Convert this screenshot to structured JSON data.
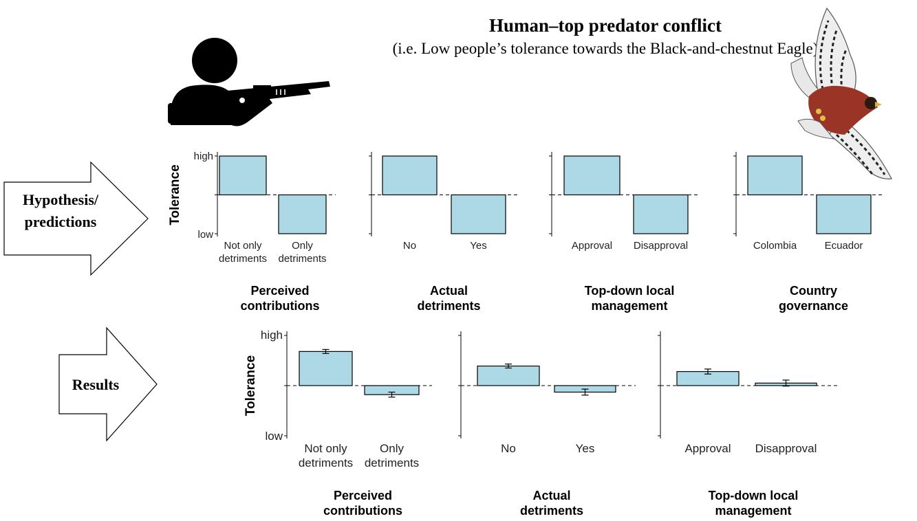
{
  "title": "Human–top predator conflict",
  "subtitle": "(i.e. Low people’s tolerance towards the Black-and-chestnut Eagle)",
  "colors": {
    "bar_fill": "#add8e6",
    "bar_stroke": "#000000",
    "arrow_fill": "#ffffff"
  },
  "icons": [
    "hunter-with-rifle-icon",
    "black-and-chestnut-eagle-icon"
  ],
  "rows": [
    {
      "label": "Hypothesis/\npredictions"
    },
    {
      "label": "Results"
    }
  ],
  "chart_data": [
    {
      "type": "bar",
      "row": "hypothesis",
      "ylabel": "Tolerance",
      "yticks": [
        "high",
        "low"
      ],
      "categories": [
        "Not only\ndetriments",
        "Only\ndetriments"
      ],
      "values": [
        1,
        -1
      ],
      "xlabel": "Perceived\ncontributions",
      "ylim": [
        -1,
        1
      ],
      "reference_line": 0
    },
    {
      "type": "bar",
      "row": "hypothesis",
      "categories": [
        "No",
        "Yes"
      ],
      "values": [
        1,
        -1
      ],
      "xlabel": "Actual\ndetriments",
      "ylim": [
        -1,
        1
      ],
      "reference_line": 0
    },
    {
      "type": "bar",
      "row": "hypothesis",
      "categories": [
        "Approval",
        "Disapproval"
      ],
      "values": [
        1,
        -1
      ],
      "xlabel": "Top-down local\nmanagement",
      "ylim": [
        -1,
        1
      ],
      "reference_line": 0
    },
    {
      "type": "bar",
      "row": "hypothesis",
      "categories": [
        "Colombia",
        "Ecuador"
      ],
      "values": [
        1,
        -1
      ],
      "xlabel": "Country\ngovernance",
      "ylim": [
        -1,
        1
      ],
      "reference_line": 0
    },
    {
      "type": "bar",
      "row": "results",
      "ylabel": "Tolerance",
      "yticks": [
        "high",
        "low"
      ],
      "categories": [
        "Not only\ndetriments",
        "Only\ndetriments"
      ],
      "values": [
        0.68,
        -0.18
      ],
      "errors": [
        0.04,
        0.05
      ],
      "xlabel": "Perceived\ncontributions",
      "ylim": [
        -1,
        1
      ],
      "reference_line": 0
    },
    {
      "type": "bar",
      "row": "results",
      "categories": [
        "No",
        "Yes"
      ],
      "values": [
        0.39,
        -0.13
      ],
      "errors": [
        0.04,
        0.06
      ],
      "xlabel": "Actual\ndetriments",
      "ylim": [
        -1,
        1
      ],
      "reference_line": 0
    },
    {
      "type": "bar",
      "row": "results",
      "categories": [
        "Approval",
        "Disapproval"
      ],
      "values": [
        0.28,
        0.05
      ],
      "errors": [
        0.05,
        0.06
      ],
      "xlabel": "Top-down local\nmanagement",
      "ylim": [
        -1,
        1
      ],
      "reference_line": 0
    }
  ]
}
